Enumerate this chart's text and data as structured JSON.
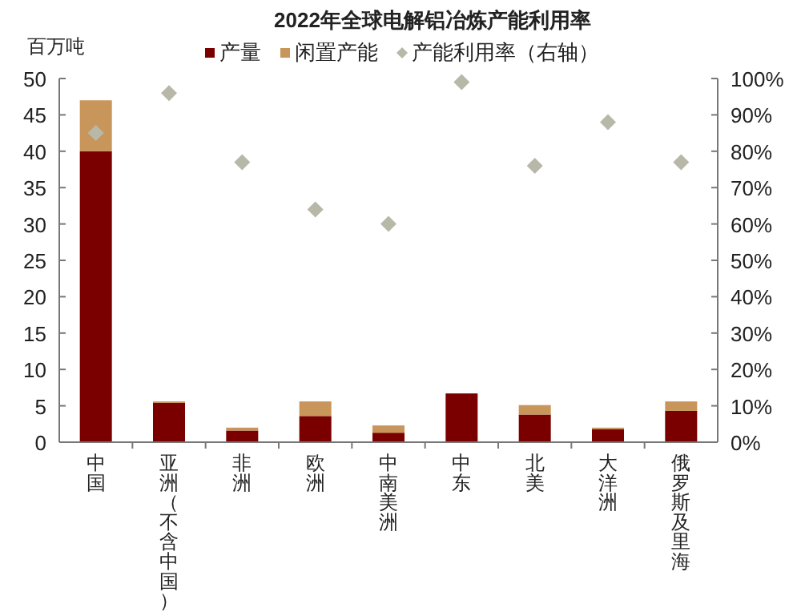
{
  "chart_data": {
    "type": "bar",
    "title": "2022年全球电解铝冶炼产能利用率",
    "ylabel": "百万吨",
    "stacked": true,
    "legend": "top",
    "grid": false,
    "marker": "diamond",
    "categories": [
      "中国",
      "亚洲（不含中国）",
      "非洲",
      "欧洲",
      "中南美洲",
      "中东",
      "北美",
      "大洋洲",
      "俄罗斯及里海"
    ],
    "series": [
      {
        "name": "产量",
        "color": "#7a0000",
        "values": [
          40,
          5.4,
          1.6,
          3.6,
          1.3,
          6.7,
          3.8,
          1.8,
          4.3
        ]
      },
      {
        "name": "闲置产能",
        "color": "#c8955a",
        "values": [
          7,
          0.2,
          0.4,
          2.0,
          1.0,
          0,
          1.3,
          0.2,
          1.3
        ]
      },
      {
        "name": "产能利用率（右轴）",
        "type": "scatter",
        "axis": "y2",
        "color": "#b8b8a8",
        "values": [
          85,
          96,
          77,
          64,
          60,
          99,
          76,
          88,
          77
        ]
      }
    ],
    "ylim": [
      0,
      50
    ],
    "yticks": [
      0,
      5,
      10,
      15,
      20,
      25,
      30,
      35,
      40,
      45,
      50
    ],
    "y2lim": [
      0,
      100
    ],
    "y2ticks": [
      {
        "value": 0,
        "label": "0%"
      },
      {
        "value": 10,
        "label": "10%"
      },
      {
        "value": 20,
        "label": "20%"
      },
      {
        "value": 30,
        "label": "30%"
      },
      {
        "value": 40,
        "label": "40%"
      },
      {
        "value": 50,
        "label": "50%"
      },
      {
        "value": 60,
        "label": "60%"
      },
      {
        "value": 70,
        "label": "70%"
      },
      {
        "value": 80,
        "label": "80%"
      },
      {
        "value": 90,
        "label": "90%"
      },
      {
        "value": 100,
        "label": "100%"
      }
    ]
  }
}
